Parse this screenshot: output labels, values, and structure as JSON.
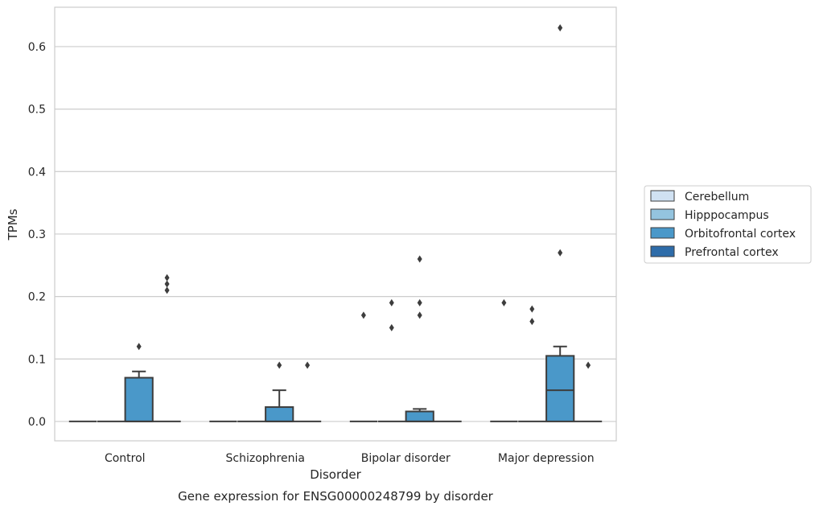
{
  "chart_data": {
    "type": "box",
    "title": "Gene expression for ENSG00000248799 by disorder",
    "xlabel": "Disorder",
    "ylabel": "TPMs",
    "categories": [
      "Control",
      "Schizophrenia",
      "Bipolar disorder",
      "Major depression"
    ],
    "hues": [
      "Cerebellum",
      "Hipppocampus",
      "Orbitofrontal cortex",
      "Prefrontal cortex"
    ],
    "hue_colors": [
      "#d0e1f2",
      "#94c4df",
      "#4a98c9",
      "#2e6ca9"
    ],
    "ylim": [
      -0.031,
      0.663
    ],
    "yticks": [
      0.0,
      0.1,
      0.2,
      0.3,
      0.4,
      0.5,
      0.6
    ],
    "ytick_labels": [
      "0.0",
      "0.1",
      "0.2",
      "0.3",
      "0.4",
      "0.5",
      "0.6"
    ],
    "grid": true,
    "legend_position": "right",
    "boxes": [
      {
        "category": "Control",
        "hue": "Cerebellum",
        "whisker_low": 0,
        "q1": 0,
        "median": 0,
        "q3": 0,
        "whisker_high": 0,
        "outliers": []
      },
      {
        "category": "Control",
        "hue": "Hipppocampus",
        "whisker_low": 0,
        "q1": 0,
        "median": 0,
        "q3": 0,
        "whisker_high": 0,
        "outliers": []
      },
      {
        "category": "Control",
        "hue": "Orbitofrontal cortex",
        "whisker_low": 0,
        "q1": 0,
        "median": 0,
        "q3": 0.07,
        "whisker_high": 0.08,
        "outliers": [
          0.12
        ]
      },
      {
        "category": "Control",
        "hue": "Prefrontal cortex",
        "whisker_low": 0,
        "q1": 0,
        "median": 0,
        "q3": 0,
        "whisker_high": 0,
        "outliers": [
          0.21,
          0.22,
          0.23
        ]
      },
      {
        "category": "Schizophrenia",
        "hue": "Cerebellum",
        "whisker_low": 0,
        "q1": 0,
        "median": 0,
        "q3": 0,
        "whisker_high": 0,
        "outliers": []
      },
      {
        "category": "Schizophrenia",
        "hue": "Hipppocampus",
        "whisker_low": 0,
        "q1": 0,
        "median": 0,
        "q3": 0,
        "whisker_high": 0,
        "outliers": []
      },
      {
        "category": "Schizophrenia",
        "hue": "Orbitofrontal cortex",
        "whisker_low": 0,
        "q1": 0,
        "median": 0,
        "q3": 0.023,
        "whisker_high": 0.05,
        "outliers": [
          0.09
        ]
      },
      {
        "category": "Schizophrenia",
        "hue": "Prefrontal cortex",
        "whisker_low": 0,
        "q1": 0,
        "median": 0,
        "q3": 0,
        "whisker_high": 0,
        "outliers": [
          0.09
        ]
      },
      {
        "category": "Bipolar disorder",
        "hue": "Cerebellum",
        "whisker_low": 0,
        "q1": 0,
        "median": 0,
        "q3": 0,
        "whisker_high": 0,
        "outliers": [
          0.17
        ]
      },
      {
        "category": "Bipolar disorder",
        "hue": "Hipppocampus",
        "whisker_low": 0,
        "q1": 0,
        "median": 0,
        "q3": 0,
        "whisker_high": 0,
        "outliers": [
          0.15,
          0.19
        ]
      },
      {
        "category": "Bipolar disorder",
        "hue": "Orbitofrontal cortex",
        "whisker_low": 0,
        "q1": 0,
        "median": 0,
        "q3": 0.016,
        "whisker_high": 0.02,
        "outliers": [
          0.17,
          0.19,
          0.26
        ]
      },
      {
        "category": "Bipolar disorder",
        "hue": "Prefrontal cortex",
        "whisker_low": 0,
        "q1": 0,
        "median": 0,
        "q3": 0,
        "whisker_high": 0,
        "outliers": []
      },
      {
        "category": "Major depression",
        "hue": "Cerebellum",
        "whisker_low": 0,
        "q1": 0,
        "median": 0,
        "q3": 0,
        "whisker_high": 0,
        "outliers": [
          0.19
        ]
      },
      {
        "category": "Major depression",
        "hue": "Hipppocampus",
        "whisker_low": 0,
        "q1": 0,
        "median": 0,
        "q3": 0,
        "whisker_high": 0,
        "outliers": [
          0.16,
          0.18
        ]
      },
      {
        "category": "Major depression",
        "hue": "Orbitofrontal cortex",
        "whisker_low": 0,
        "q1": 0,
        "median": 0.05,
        "q3": 0.105,
        "whisker_high": 0.12,
        "outliers": [
          0.27,
          0.63
        ]
      },
      {
        "category": "Major depression",
        "hue": "Prefrontal cortex",
        "whisker_low": 0,
        "q1": 0,
        "median": 0,
        "q3": 0,
        "whisker_high": 0,
        "outliers": [
          0.09
        ]
      }
    ]
  }
}
